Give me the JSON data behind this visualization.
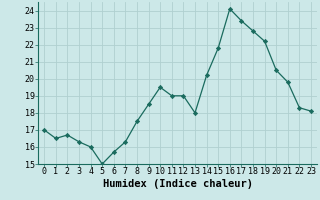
{
  "x": [
    0,
    1,
    2,
    3,
    4,
    5,
    6,
    7,
    8,
    9,
    10,
    11,
    12,
    13,
    14,
    15,
    16,
    17,
    18,
    19,
    20,
    21,
    22,
    23
  ],
  "y": [
    17.0,
    16.5,
    16.7,
    16.3,
    16.0,
    15.0,
    15.7,
    16.3,
    17.5,
    18.5,
    19.5,
    19.0,
    19.0,
    18.0,
    20.2,
    21.8,
    24.1,
    23.4,
    22.8,
    22.2,
    20.5,
    19.8,
    18.3,
    18.1
  ],
  "xlabel": "Humidex (Indice chaleur)",
  "ylim": [
    15,
    24.5
  ],
  "yticks": [
    15,
    16,
    17,
    18,
    19,
    20,
    21,
    22,
    23,
    24
  ],
  "xticks": [
    0,
    1,
    2,
    3,
    4,
    5,
    6,
    7,
    8,
    9,
    10,
    11,
    12,
    13,
    14,
    15,
    16,
    17,
    18,
    19,
    20,
    21,
    22,
    23
  ],
  "line_color": "#1a6b5e",
  "marker_color": "#1a6b5e",
  "bg_color": "#cce8e8",
  "grid_color": "#b0d0d0",
  "xlabel_fontsize": 7.5,
  "tick_fontsize": 6.0
}
